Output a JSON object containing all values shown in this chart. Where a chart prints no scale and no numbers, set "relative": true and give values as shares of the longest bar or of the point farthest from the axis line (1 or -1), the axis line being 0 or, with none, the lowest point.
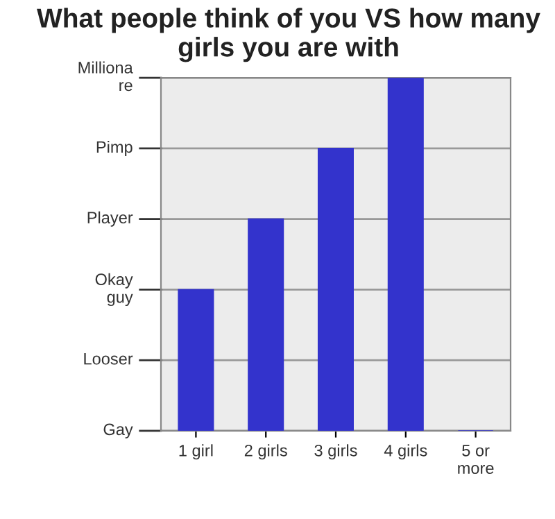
{
  "chart_data": {
    "type": "bar",
    "title": "What people think of you VS how many girls you are with",
    "categories": [
      "1 girl",
      "2 girls",
      "3 girls",
      "4 girls",
      "5 or\nmore"
    ],
    "values": [
      0.4,
      0.6,
      0.8,
      1,
      0
    ],
    "color": "#3333cc",
    "relative": true,
    "ref_lines": [
      {
        "axis": "y",
        "value": 0,
        "label": "Gay",
        "color": "#999999"
      },
      {
        "axis": "y",
        "value": 0.2,
        "label": "Looser",
        "color": "#999999"
      },
      {
        "axis": "y",
        "value": 0.4,
        "label": "Okay\nguy",
        "color": "#999999"
      },
      {
        "axis": "y",
        "value": 0.6,
        "label": "Player",
        "color": "#999999"
      },
      {
        "axis": "y",
        "value": 0.8,
        "label": "Pimp",
        "color": "#999999"
      },
      {
        "axis": "y",
        "value": 1,
        "label": "Milliona\nre",
        "color": "#999999"
      }
    ]
  }
}
